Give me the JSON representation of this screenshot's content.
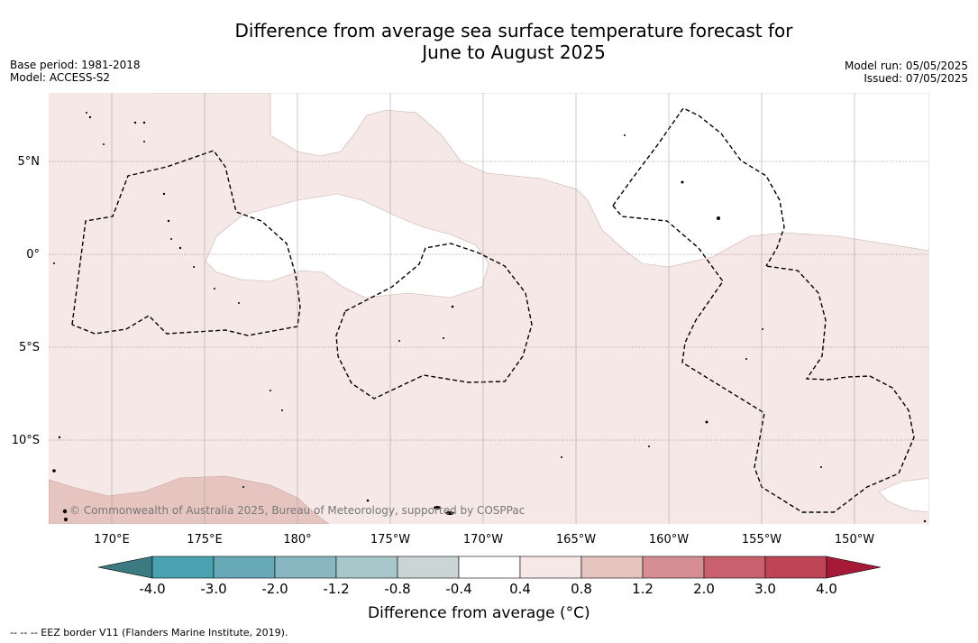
{
  "title": {
    "line1": "Difference from average sea surface temperature forecast for",
    "line2": "June to August 2025"
  },
  "meta_left": {
    "base_period": "Base period: 1981-2018",
    "model": "Model: ACCESS-S2"
  },
  "meta_right": {
    "model_run": "Model run: 05/05/2025",
    "issued": "Issued: 07/05/2025"
  },
  "map": {
    "lat_labels": [
      "5°N",
      "0°",
      "5°S",
      "10°S"
    ],
    "lon_labels": [
      "170°E",
      "175°E",
      "180°",
      "175°W",
      "170°W",
      "165°W",
      "160°W",
      "155°W",
      "150°W"
    ],
    "copyright": "© Commonwealth of Australia 2025, Bureau of Meteorology, supported by COSPPac",
    "colors": {
      "anom_0_4_to_0_8": "#f5e8e6",
      "anom_0_8_to_1_2": "#e6c5c0",
      "gridline": "#666666",
      "eez": "#000000"
    }
  },
  "colorbar": {
    "title": "Difference from average (°C)",
    "ticks": [
      "-4.0",
      "-3.0",
      "-2.0",
      "-1.2",
      "-0.8",
      "-0.4",
      "0.4",
      "0.8",
      "1.2",
      "2.0",
      "3.0",
      "4.0"
    ],
    "colors": [
      "#3b7a80",
      "#4aa3b1",
      "#68a9b8",
      "#88b7c1",
      "#a7c7ca",
      "#cbd5d6",
      "#ffffff",
      "#f5e8e6",
      "#e6c5c0",
      "#d68e95",
      "#c8616d",
      "#bd4555",
      "#a61a37"
    ]
  },
  "footer": {
    "eez_note": "-- -- -- EEZ border V11 (Flanders Marine Institute, 2019)."
  }
}
